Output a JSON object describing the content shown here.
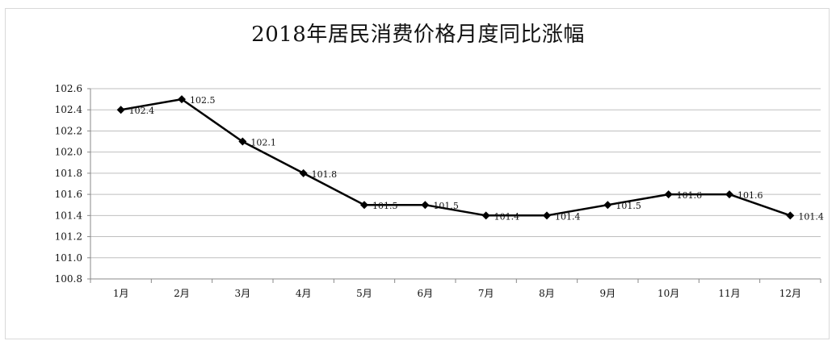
{
  "chart_data": {
    "type": "line",
    "title": "2018年居民消费价格月度同比涨幅",
    "xlabel": "",
    "ylabel": "",
    "categories": [
      "1月",
      "2月",
      "3月",
      "4月",
      "5月",
      "6月",
      "7月",
      "8月",
      "9月",
      "10月",
      "11月",
      "12月"
    ],
    "series": [
      {
        "values": [
          102.4,
          102.5,
          102.1,
          101.8,
          101.5,
          101.5,
          101.4,
          101.4,
          101.5,
          101.6,
          101.6,
          101.4
        ],
        "color": "#000000",
        "marker": "diamond",
        "data_labels": [
          "102.4",
          "102.5",
          "102.1",
          "101.8",
          "101.5",
          "101.5",
          "101.4",
          "101.4",
          "101.5",
          "101.6",
          "101.6",
          "101.4"
        ]
      }
    ],
    "ylim": [
      100.8,
      102.6
    ],
    "yticks": [
      "102.6",
      "102.4",
      "102.2",
      "102.0",
      "101.8",
      "101.6",
      "101.4",
      "101.2",
      "101.0",
      "100.8"
    ],
    "grid": true,
    "legend": "none"
  }
}
